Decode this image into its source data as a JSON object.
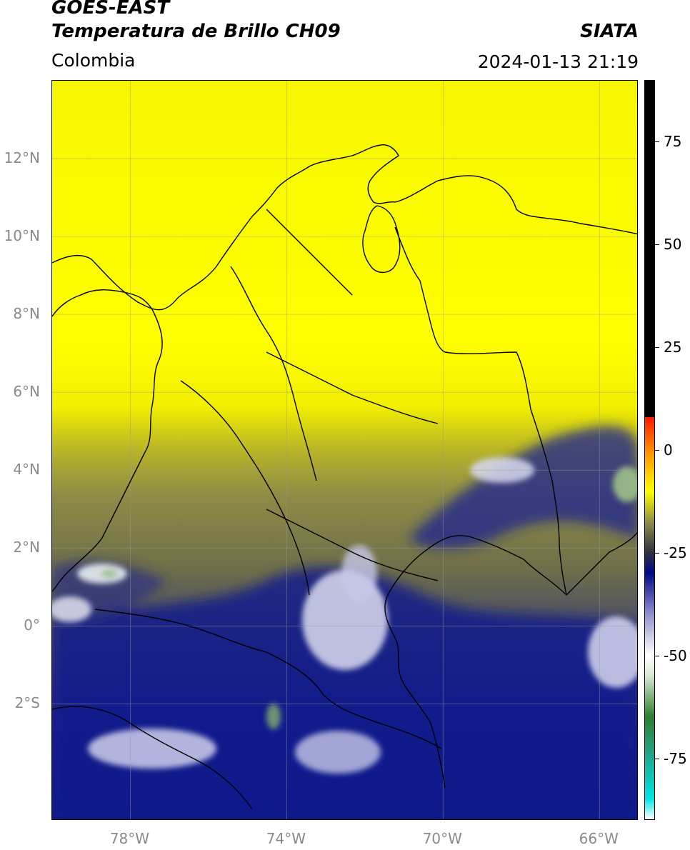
{
  "header": {
    "title_line1": "GOES-EAST",
    "title_line2": "Temperatura de Brillo CH09",
    "brand": "SIATA",
    "region": "Colombia",
    "timestamp": "2024-01-13 21:19"
  },
  "map": {
    "lat_ticks": [
      "12°N",
      "10°N",
      "8°N",
      "6°N",
      "4°N",
      "2°N",
      "0°",
      "2°S"
    ],
    "lon_ticks": [
      "78°W",
      "74°W",
      "70°W",
      "66°W"
    ],
    "lat_values": [
      12,
      10,
      8,
      6,
      4,
      2,
      0,
      -2
    ],
    "lon_values": [
      -78,
      -74,
      -70,
      -66
    ],
    "extent": {
      "lon_min": -80.0,
      "lon_max": -65.0,
      "lat_min": -5.0,
      "lat_max": 14.0
    }
  },
  "colorbar": {
    "tick_labels": [
      "75",
      "50",
      "25",
      "0",
      "-25",
      "-50",
      "-75"
    ],
    "tick_values": [
      75,
      50,
      25,
      0,
      -25,
      -50,
      -75
    ],
    "range": [
      -90,
      90
    ],
    "stops": [
      {
        "value": -90,
        "color": "#ffffff"
      },
      {
        "value": -85,
        "color": "#00e5e5"
      },
      {
        "value": -75,
        "color": "#20a890"
      },
      {
        "value": -65,
        "color": "#2f7f2f"
      },
      {
        "value": -55,
        "color": "#d8e8d0"
      },
      {
        "value": -50,
        "color": "#ffffff"
      },
      {
        "value": -40,
        "color": "#9090cc"
      },
      {
        "value": -30,
        "color": "#000a88"
      },
      {
        "value": -25,
        "color": "#303040"
      },
      {
        "value": -18,
        "color": "#88884a"
      },
      {
        "value": -10,
        "color": "#ffff00"
      },
      {
        "value": 0,
        "color": "#ff8c00"
      },
      {
        "value": 8,
        "color": "#ff1a00"
      },
      {
        "value": 8.01,
        "color": "#000000"
      },
      {
        "value": 90,
        "color": "#000000"
      }
    ]
  }
}
